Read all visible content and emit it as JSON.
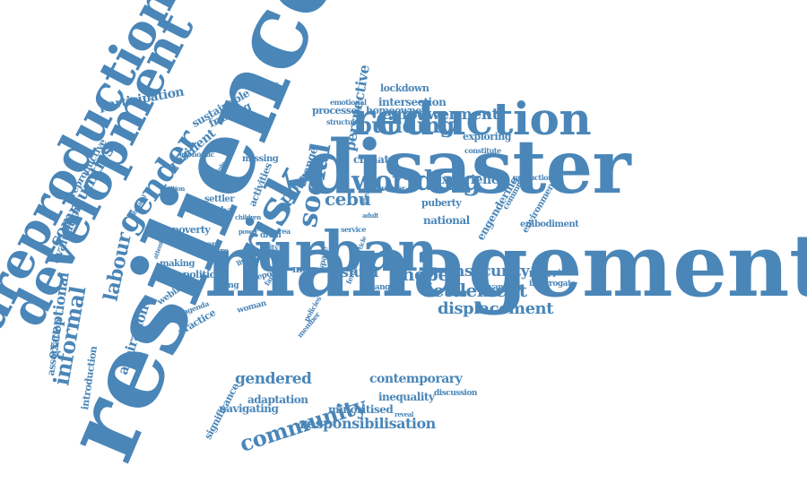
{
  "color": "#4a86b8",
  "words": [
    {
      "text": "management",
      "id": "management"
    },
    {
      "text": "resilience",
      "id": "resilience"
    },
    {
      "text": "disaster",
      "id": "disaster"
    },
    {
      "text": "urban",
      "id": "urban"
    },
    {
      "text": "reduction",
      "id": "reduction"
    },
    {
      "text": "development",
      "id": "development"
    },
    {
      "text": "dreproduction",
      "id": "dreproduction"
    },
    {
      "text": "risk",
      "id": "risk"
    },
    {
      "text": "social",
      "id": "social"
    },
    {
      "text": "gender",
      "id": "gender"
    },
    {
      "text": "worlding",
      "id": "worlding"
    },
    {
      "text": "community",
      "id": "community"
    },
    {
      "text": "building",
      "id": "building"
    },
    {
      "text": "cebu",
      "id": "cebu"
    },
    {
      "text": "hope",
      "id": "hope"
    },
    {
      "text": "settlement",
      "id": "settlement"
    },
    {
      "text": "displacement",
      "id": "displacement"
    },
    {
      "text": "empowerment",
      "id": "empowerment"
    },
    {
      "text": "insecurity",
      "id": "insecurity"
    },
    {
      "text": "slum",
      "id": "slum"
    },
    {
      "text": "informal",
      "id": "informal"
    },
    {
      "text": "labour",
      "id": "labour"
    },
    {
      "text": "responsibilisation",
      "id": "responsibilisation"
    },
    {
      "text": "communities",
      "id": "communities"
    },
    {
      "text": "perspective",
      "id": "perspective"
    },
    {
      "text": "exceptional",
      "id": "exceptional"
    },
    {
      "text": "aspiration",
      "id": "aspiration"
    },
    {
      "text": "gendered",
      "id": "gendered"
    },
    {
      "text": "contemporary",
      "id": "contemporary"
    },
    {
      "text": "experience",
      "id": "experience"
    },
    {
      "text": "poor",
      "id": "poor"
    },
    {
      "text": "participation",
      "id": "participation"
    },
    {
      "text": "resilient",
      "id": "resilient"
    },
    {
      "text": "change",
      "id": "change"
    },
    {
      "text": "climate",
      "id": "climate"
    },
    {
      "text": "intersection",
      "id": "intersection"
    },
    {
      "text": "homeowner",
      "id": "homeowner"
    },
    {
      "text": "lockdown",
      "id": "lockdown"
    },
    {
      "text": "processes",
      "id": "processes"
    },
    {
      "text": "sustainable",
      "id": "sustainable"
    },
    {
      "text": "framing",
      "id": "framing"
    },
    {
      "text": "evaluation",
      "id": "evaluation"
    },
    {
      "text": "reproductive",
      "id": "reproductive"
    },
    {
      "text": "engendering",
      "id": "engendering"
    },
    {
      "text": "exploring",
      "id": "exploring"
    },
    {
      "text": "national",
      "id": "national"
    },
    {
      "text": "puberty",
      "id": "puberty"
    },
    {
      "text": "embodiment",
      "id": "embodiment"
    },
    {
      "text": "environmental",
      "id": "environmental"
    },
    {
      "text": "adaptation",
      "id": "adaptation"
    },
    {
      "text": "inequality",
      "id": "inequality"
    },
    {
      "text": "minoritised",
      "id": "minoritised"
    },
    {
      "text": "navigating",
      "id": "navigating"
    },
    {
      "text": "poverty",
      "id": "poverty"
    },
    {
      "text": "political",
      "id": "political"
    },
    {
      "text": "making",
      "id": "making"
    },
    {
      "text": "lexicon",
      "id": "lexicon"
    },
    {
      "text": "webinar",
      "id": "webinar"
    },
    {
      "text": "association",
      "id": "association"
    },
    {
      "text": "introduction",
      "id": "introduction"
    },
    {
      "text": "significance",
      "id": "significance"
    },
    {
      "text": "practice",
      "id": "practice"
    },
    {
      "text": "global",
      "id": "global"
    },
    {
      "text": "settler",
      "id": "settler"
    },
    {
      "text": "future",
      "id": "future"
    },
    {
      "text": "young",
      "id": "young"
    },
    {
      "text": "activities",
      "id": "activities"
    },
    {
      "text": "missing",
      "id": "missing"
    },
    {
      "text": "precarious",
      "id": "precarious"
    },
    {
      "text": "economic",
      "id": "economic"
    },
    {
      "text": "drrm",
      "id": "drrm"
    },
    {
      "text": "space",
      "id": "space"
    },
    {
      "text": "more",
      "id": "more"
    },
    {
      "text": "danger",
      "id": "danger"
    },
    {
      "text": "advancing",
      "id": "advancing"
    },
    {
      "text": "interrogate",
      "id": "interrogate"
    },
    {
      "text": "philippine",
      "id": "philippine"
    },
    {
      "text": "production",
      "id": "production"
    },
    {
      "text": "commercial",
      "id": "commercial"
    },
    {
      "text": "discussion",
      "id": "discussion"
    },
    {
      "text": "structural",
      "id": "structural"
    },
    {
      "text": "emotional",
      "id": "emotional"
    },
    {
      "text": "constitute",
      "id": "constitute"
    },
    {
      "text": "broader",
      "id": "broader"
    },
    {
      "text": "service",
      "id": "service"
    },
    {
      "text": "report",
      "id": "report"
    },
    {
      "text": "woman",
      "id": "woman"
    },
    {
      "text": "member",
      "id": "member"
    },
    {
      "text": "policies",
      "id": "policies"
    },
    {
      "text": "feminist",
      "id": "feminist"
    },
    {
      "text": "agenda",
      "id": "agenda"
    },
    {
      "text": "city",
      "id": "city"
    },
    {
      "text": "area",
      "id": "area"
    },
    {
      "text": "living",
      "id": "living"
    },
    {
      "text": "girl",
      "id": "girl"
    },
    {
      "text": "family",
      "id": "family"
    },
    {
      "text": "position",
      "id": "position"
    },
    {
      "text": "physical",
      "id": "physical"
    },
    {
      "text": "multiple",
      "id": "multiple"
    },
    {
      "text": "children",
      "id": "children"
    },
    {
      "text": "attention",
      "id": "attention"
    },
    {
      "text": "power",
      "id": "power"
    },
    {
      "text": "article",
      "id": "article"
    },
    {
      "text": "event",
      "id": "event"
    },
    {
      "text": "adult",
      "id": "adult"
    },
    {
      "text": "reveal",
      "id": "reveal"
    }
  ]
}
